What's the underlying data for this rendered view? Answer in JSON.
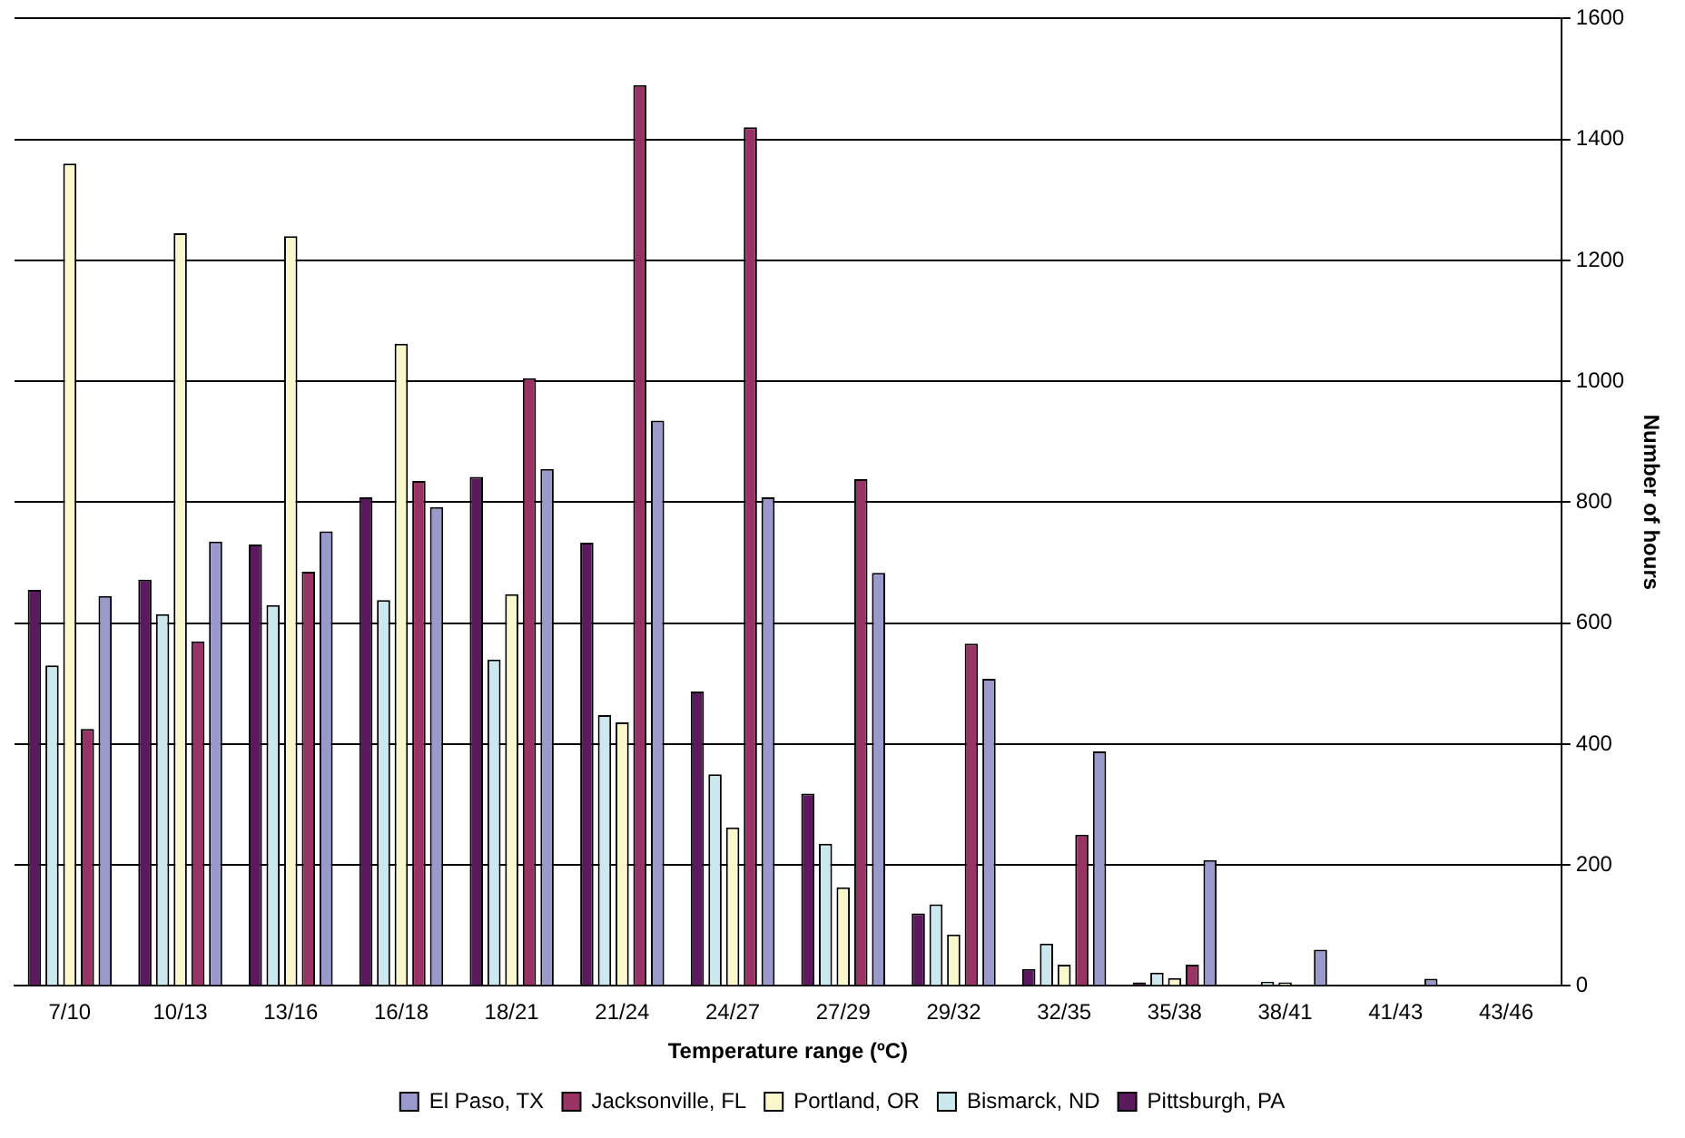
{
  "chart_data": {
    "type": "bar",
    "xlabel": "Temperature range (ºC)",
    "ylabel": "Number of hours",
    "categories": [
      "7/10",
      "10/13",
      "13/16",
      "16/18",
      "18/21",
      "21/24",
      "24/27",
      "27/29",
      "29/32",
      "32/35",
      "35/38",
      "38/41",
      "41/43",
      "43/46"
    ],
    "series": [
      {
        "name": "Pittsburgh, PA",
        "color": "#5c1a5e",
        "values": [
          655,
          672,
          730,
          808,
          842,
          733,
          487,
          318,
          120,
          28,
          6,
          0,
          0,
          0
        ]
      },
      {
        "name": "Bismarck, ND",
        "color": "#cce8ef",
        "values": [
          530,
          615,
          630,
          638,
          540,
          448,
          350,
          235,
          135,
          70,
          22,
          7,
          0,
          0
        ]
      },
      {
        "name": "Portland, OR",
        "color": "#fbf7cc",
        "values": [
          1360,
          1245,
          1240,
          1062,
          648,
          436,
          262,
          163,
          85,
          35,
          13,
          6,
          0,
          0
        ]
      },
      {
        "name": "Jacksonville, FL",
        "color": "#993366",
        "values": [
          425,
          570,
          685,
          835,
          1005,
          1490,
          1420,
          838,
          566,
          250,
          35,
          0,
          0,
          0
        ]
      },
      {
        "name": "El Paso, TX",
        "color": "#9999cc",
        "values": [
          645,
          735,
          752,
          792,
          855,
          935,
          808,
          683,
          508,
          388,
          208,
          60,
          12,
          0
        ]
      }
    ],
    "ylim": [
      0,
      1600
    ],
    "yticks": [
      0,
      200,
      400,
      600,
      800,
      1000,
      1200,
      1400,
      1600
    ],
    "grid": "y",
    "legend": "bottom"
  }
}
